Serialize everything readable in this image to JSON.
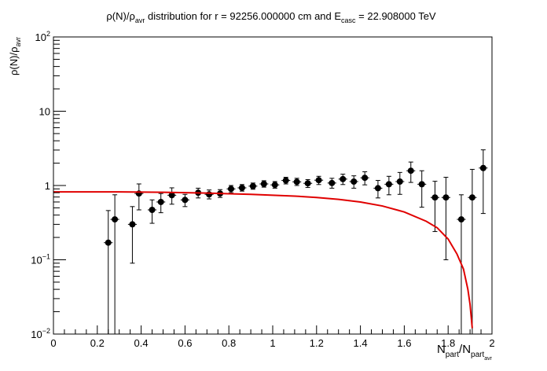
{
  "chart_data": {
    "type": "scatter",
    "title": {
      "parts": [
        "ρ(N)/ρ",
        "avr",
        " distribution for r = 92256.000000 cm and E",
        "casc",
        " = 22.908000 TeV"
      ]
    },
    "xlabel": {
      "parts": [
        "N",
        "part",
        "/N",
        "part",
        "avr"
      ]
    },
    "ylabel": {
      "parts": [
        "ρ(N)/ρ",
        "avr"
      ]
    },
    "xlim": [
      0,
      2
    ],
    "ylim": [
      0.01,
      100
    ],
    "y_scale": "log",
    "x_ticks": [
      {
        "value": 0,
        "label": "0"
      },
      {
        "value": 0.2,
        "label": "0.2"
      },
      {
        "value": 0.4,
        "label": "0.4"
      },
      {
        "value": 0.6,
        "label": "0.6"
      },
      {
        "value": 0.8,
        "label": "0.8"
      },
      {
        "value": 1,
        "label": "1"
      },
      {
        "value": 1.2,
        "label": "1.2"
      },
      {
        "value": 1.4,
        "label": "1.4"
      },
      {
        "value": 1.6,
        "label": "1.6"
      },
      {
        "value": 1.8,
        "label": "1.8"
      },
      {
        "value": 2,
        "label": "2"
      }
    ],
    "y_ticks": [
      {
        "value": 0.01,
        "base": "10",
        "exp": "−2"
      },
      {
        "value": 0.1,
        "base": "10",
        "exp": "−1"
      },
      {
        "value": 1,
        "base": "1",
        "exp": ""
      },
      {
        "value": 10,
        "base": "10",
        "exp": ""
      },
      {
        "value": 100,
        "base": "10",
        "exp": "2"
      }
    ],
    "series": [
      {
        "kind": "points",
        "color": "#000000",
        "x_err": 0.02,
        "points": [
          {
            "x": 0.25,
            "y": 0.17,
            "lo": 0.001,
            "hi": 0.46
          },
          {
            "x": 0.28,
            "y": 0.35,
            "lo": 0.001,
            "hi": 0.75
          },
          {
            "x": 0.36,
            "y": 0.3,
            "lo": 0.09,
            "hi": 0.52
          },
          {
            "x": 0.39,
            "y": 0.78,
            "lo": 0.47,
            "hi": 1.05
          },
          {
            "x": 0.45,
            "y": 0.47,
            "lo": 0.31,
            "hi": 0.64
          },
          {
            "x": 0.49,
            "y": 0.6,
            "lo": 0.43,
            "hi": 0.78
          },
          {
            "x": 0.54,
            "y": 0.74,
            "lo": 0.56,
            "hi": 0.93
          },
          {
            "x": 0.6,
            "y": 0.64,
            "lo": 0.52,
            "hi": 0.76
          },
          {
            "x": 0.66,
            "y": 0.8,
            "lo": 0.68,
            "hi": 0.92
          },
          {
            "x": 0.71,
            "y": 0.76,
            "lo": 0.66,
            "hi": 0.87
          },
          {
            "x": 0.76,
            "y": 0.78,
            "lo": 0.69,
            "hi": 0.88
          },
          {
            "x": 0.81,
            "y": 0.9,
            "lo": 0.8,
            "hi": 1.0
          },
          {
            "x": 0.86,
            "y": 0.93,
            "lo": 0.84,
            "hi": 1.03
          },
          {
            "x": 0.91,
            "y": 0.98,
            "lo": 0.89,
            "hi": 1.08
          },
          {
            "x": 0.96,
            "y": 1.05,
            "lo": 0.95,
            "hi": 1.16
          },
          {
            "x": 1.01,
            "y": 1.02,
            "lo": 0.92,
            "hi": 1.13
          },
          {
            "x": 1.06,
            "y": 1.17,
            "lo": 1.05,
            "hi": 1.29
          },
          {
            "x": 1.11,
            "y": 1.12,
            "lo": 1.0,
            "hi": 1.25
          },
          {
            "x": 1.16,
            "y": 1.07,
            "lo": 0.94,
            "hi": 1.2
          },
          {
            "x": 1.21,
            "y": 1.18,
            "lo": 1.03,
            "hi": 1.33
          },
          {
            "x": 1.27,
            "y": 1.08,
            "lo": 0.92,
            "hi": 1.25
          },
          {
            "x": 1.32,
            "y": 1.22,
            "lo": 1.03,
            "hi": 1.42
          },
          {
            "x": 1.37,
            "y": 1.13,
            "lo": 0.92,
            "hi": 1.35
          },
          {
            "x": 1.42,
            "y": 1.27,
            "lo": 1.02,
            "hi": 1.53
          },
          {
            "x": 1.48,
            "y": 0.92,
            "lo": 0.68,
            "hi": 1.17
          },
          {
            "x": 1.53,
            "y": 1.04,
            "lo": 0.75,
            "hi": 1.33
          },
          {
            "x": 1.58,
            "y": 1.13,
            "lo": 0.76,
            "hi": 1.5
          },
          {
            "x": 1.63,
            "y": 1.58,
            "lo": 1.1,
            "hi": 2.07
          },
          {
            "x": 1.68,
            "y": 1.04,
            "lo": 0.51,
            "hi": 1.58
          },
          {
            "x": 1.74,
            "y": 0.69,
            "lo": 0.24,
            "hi": 1.14
          },
          {
            "x": 1.79,
            "y": 0.69,
            "lo": 0.1,
            "hi": 1.29
          },
          {
            "x": 1.86,
            "y": 0.35,
            "lo": 0.001,
            "hi": 0.75
          },
          {
            "x": 1.91,
            "y": 0.69,
            "lo": 0.001,
            "hi": 1.65
          },
          {
            "x": 1.96,
            "y": 1.72,
            "lo": 0.42,
            "hi": 3.02
          }
        ]
      },
      {
        "kind": "curve",
        "color": "#e00000",
        "points": [
          {
            "x": 0.0,
            "y": 0.82
          },
          {
            "x": 0.1,
            "y": 0.82
          },
          {
            "x": 0.2,
            "y": 0.82
          },
          {
            "x": 0.3,
            "y": 0.82
          },
          {
            "x": 0.4,
            "y": 0.815
          },
          {
            "x": 0.5,
            "y": 0.81
          },
          {
            "x": 0.6,
            "y": 0.8
          },
          {
            "x": 0.7,
            "y": 0.79
          },
          {
            "x": 0.8,
            "y": 0.775
          },
          {
            "x": 0.9,
            "y": 0.76
          },
          {
            "x": 1.0,
            "y": 0.74
          },
          {
            "x": 1.1,
            "y": 0.72
          },
          {
            "x": 1.2,
            "y": 0.69
          },
          {
            "x": 1.3,
            "y": 0.65
          },
          {
            "x": 1.4,
            "y": 0.6
          },
          {
            "x": 1.5,
            "y": 0.53
          },
          {
            "x": 1.6,
            "y": 0.44
          },
          {
            "x": 1.7,
            "y": 0.33
          },
          {
            "x": 1.75,
            "y": 0.27
          },
          {
            "x": 1.8,
            "y": 0.19
          },
          {
            "x": 1.84,
            "y": 0.12
          },
          {
            "x": 1.87,
            "y": 0.075
          },
          {
            "x": 1.89,
            "y": 0.04
          },
          {
            "x": 1.9,
            "y": 0.025
          },
          {
            "x": 1.91,
            "y": 0.012
          }
        ]
      }
    ],
    "grid": false,
    "legend": "none"
  }
}
